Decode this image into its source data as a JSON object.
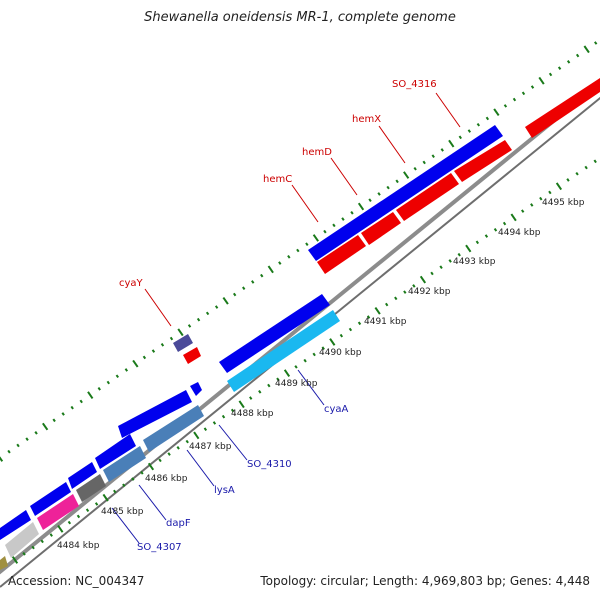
{
  "title": "Shewanella oneidensis MR-1, complete genome",
  "footer": {
    "accession": "Accession: NC_004347",
    "summary": "Topology: circular; Length: 4,969,803 bp; Genes: 4,448"
  },
  "ticks": [
    {
      "label": "4484 kbp",
      "kbp": 4484
    },
    {
      "label": "4485 kbp",
      "kbp": 4485
    },
    {
      "label": "4486 kbp",
      "kbp": 4486
    },
    {
      "label": "4487 kbp",
      "kbp": 4487
    },
    {
      "label": "4488 kbp",
      "kbp": 4488
    },
    {
      "label": "4489 kbp",
      "kbp": 4489
    },
    {
      "label": "4490 kbp",
      "kbp": 4490
    },
    {
      "label": "4491 kbp",
      "kbp": 4491
    },
    {
      "label": "4492 kbp",
      "kbp": 4492
    },
    {
      "label": "4493 kbp",
      "kbp": 4493
    },
    {
      "label": "4494 kbp",
      "kbp": 4494
    },
    {
      "label": "4495 kbp",
      "kbp": 4495
    }
  ],
  "gene_labels": [
    {
      "name": "SO_4316",
      "color": "#cc0000"
    },
    {
      "name": "hemX",
      "color": "#cc0000"
    },
    {
      "name": "hemD",
      "color": "#cc0000"
    },
    {
      "name": "hemC",
      "color": "#cc0000"
    },
    {
      "name": "cyaY",
      "color": "#cc0000"
    },
    {
      "name": "cyaA",
      "color": "#1a1aaa"
    },
    {
      "name": "SO_4310",
      "color": "#1a1aaa"
    },
    {
      "name": "lysA",
      "color": "#1a1aaa"
    },
    {
      "name": "dapF",
      "color": "#1a1aaa"
    },
    {
      "name": "SO_4307",
      "color": "#1a1aaa"
    }
  ],
  "colors": {
    "backbone": "#8c8c8c",
    "tick_green": "#1a7a1a",
    "forward_gene": "#0000ee",
    "reverse_gene": "#ee0000",
    "cyan_gene": "#1ab8f0",
    "steelblue_gene": "#4a7fb8",
    "magenta_gene": "#ee2299",
    "gray_gene": "#666666",
    "lightgray_gene": "#c8c8c8",
    "purple_gene": "#4a4a99",
    "olive_gene": "#a09040"
  }
}
